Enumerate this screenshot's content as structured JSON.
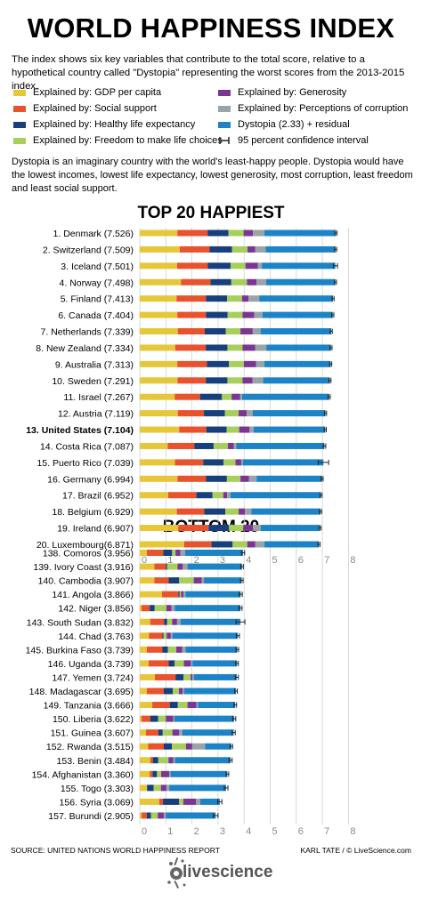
{
  "title": "WORLD HAPPINESS INDEX",
  "intro": "The index shows six key variables that contribute to the total score, relative to a hypothetical country called \"Dystopia\" representing the worst scores from the 2013-2015 index.",
  "legend": [
    {
      "label": "Explained by: GDP per capita",
      "color": "#e6c73a"
    },
    {
      "label": "Explained by: Social support",
      "color": "#e8522c"
    },
    {
      "label": "Explained by: Healthy life expectancy",
      "color": "#163f7c"
    },
    {
      "label": "Explained by: Freedom to make life choices",
      "color": "#a6cf5c"
    },
    {
      "label": "Explained by: Generosity",
      "color": "#7b3694"
    },
    {
      "label": "Explained by: Perceptions of corruption",
      "color": "#9aa3a8"
    },
    {
      "label": "Dystopia (2.33) + residual",
      "color": "#1c84c6"
    },
    {
      "label": "95 percent confidence interval",
      "color": "#222222"
    }
  ],
  "dystopia_description": "Dystopia is an imaginary country with the world's least-happy people. Dystopia would have the lowest incomes, lowest life expectancy, lowest generosity, most corruption, least freedom and least social support.",
  "source": "SOURCE: UNITED NATIONS WORLD HAPPINESS REPORT",
  "credit": "KARL TATE / © LiveScience.com",
  "logo_text": "livescience",
  "chart_data": [
    {
      "type": "bar",
      "stacked": true,
      "orientation": "horizontal",
      "title": "TOP 20 HAPPIEST",
      "xlim": [
        0,
        8
      ],
      "xticks": [
        "0",
        "1",
        "2",
        "3",
        "4",
        "5",
        "6",
        "7",
        "8"
      ],
      "grid": true,
      "bold_category": "13. United States (7.104)",
      "categories": [
        "1. Denmark (7.526)",
        "2. Switzerland (7.509)",
        "3. Iceland (7.501)",
        "4. Norway (7.498)",
        "5. Finland (7.413)",
        "6. Canada (7.404)",
        "7. Netherlands (7.339)",
        "8. New Zealand (7.334)",
        "9. Australia (7.313)",
        "10. Sweden (7.291)",
        "11. Israel (7.267)",
        "12. Austria (7.119)",
        "13. United States (7.104)",
        "14. Costa Rica (7.087)",
        "15. Puerto Rico (7.039)",
        "16. Germany (6.994)",
        "17. Brazil (6.952)",
        "18. Belgium (6.929)",
        "19. Ireland (6.907)",
        "20. Luxembourg(6.871)"
      ],
      "series": [
        {
          "name": "Explained by: GDP per capita",
          "color": "#e6c73a",
          "values": [
            1.44,
            1.53,
            1.43,
            1.58,
            1.41,
            1.44,
            1.46,
            1.36,
            1.44,
            1.45,
            1.34,
            1.46,
            1.51,
            1.07,
            1.35,
            1.45,
            1.09,
            1.42,
            1.48,
            1.7
          ]
        },
        {
          "name": "Explained by: Social support",
          "color": "#e8522c",
          "values": [
            1.16,
            1.15,
            1.18,
            1.13,
            1.13,
            1.1,
            1.03,
            1.17,
            1.13,
            1.08,
            0.97,
            1.0,
            1.04,
            1.02,
            1.08,
            1.09,
            1.08,
            1.05,
            1.16,
            1.05
          ]
        },
        {
          "name": "Explained by: Healthy life expectancy",
          "color": "#163f7c",
          "values": [
            0.8,
            0.86,
            0.87,
            0.8,
            0.81,
            0.83,
            0.81,
            0.83,
            0.85,
            0.83,
            0.84,
            0.8,
            0.78,
            0.74,
            0.78,
            0.8,
            0.62,
            0.81,
            0.78,
            0.81
          ]
        },
        {
          "name": "Explained by: Freedom to make life choices",
          "color": "#a6cf5c",
          "values": [
            0.58,
            0.59,
            0.57,
            0.6,
            0.57,
            0.57,
            0.56,
            0.58,
            0.57,
            0.58,
            0.37,
            0.53,
            0.48,
            0.55,
            0.46,
            0.52,
            0.41,
            0.51,
            0.55,
            0.56
          ]
        },
        {
          "name": "Explained by: Generosity",
          "color": "#7b3694",
          "values": [
            0.36,
            0.29,
            0.48,
            0.37,
            0.25,
            0.45,
            0.47,
            0.49,
            0.47,
            0.38,
            0.33,
            0.31,
            0.4,
            0.22,
            0.22,
            0.33,
            0.15,
            0.24,
            0.37,
            0.31
          ]
        },
        {
          "name": "Explained by: Perceptions of corruption",
          "color": "#9aa3a8",
          "values": [
            0.44,
            0.41,
            0.15,
            0.36,
            0.41,
            0.31,
            0.3,
            0.42,
            0.32,
            0.41,
            0.07,
            0.23,
            0.15,
            0.1,
            0.06,
            0.29,
            0.13,
            0.25,
            0.3,
            0.35
          ]
        },
        {
          "name": "Dystopia (2.33) + residual",
          "color": "#1c84c6",
          "values": [
            2.74,
            2.68,
            2.82,
            2.66,
            2.83,
            2.7,
            2.71,
            2.48,
            2.54,
            2.56,
            3.34,
            2.79,
            2.75,
            3.38,
            3.09,
            2.51,
            3.47,
            2.65,
            2.27,
            2.09
          ]
        }
      ],
      "ci_halfwidth": [
        0.04,
        0.04,
        0.08,
        0.04,
        0.04,
        0.04,
        0.04,
        0.04,
        0.04,
        0.04,
        0.04,
        0.04,
        0.04,
        0.05,
        0.2,
        0.04,
        0.04,
        0.04,
        0.04,
        0.04
      ]
    },
    {
      "type": "bar",
      "stacked": true,
      "orientation": "horizontal",
      "title": "BOTTOM 20",
      "xlim": [
        0,
        8
      ],
      "xticks": [
        "0",
        "1",
        "2",
        "3",
        "4",
        "5",
        "6",
        "7",
        "8"
      ],
      "grid": true,
      "categories": [
        "138. Comoros (3.956)",
        "139. Ivory Coast (3.916)",
        "140. Cambodia (3.907)",
        "141. Angola (3.866)",
        "142. Niger (3.856)",
        "143. South Sudan (3.832)",
        "144. Chad (3.763)",
        "145. Burkina Faso (3.739)",
        "146. Uganda (3.739)",
        "147. Yemen (3.724)",
        "148. Madagascar (3.695)",
        "149. Tanzania (3.666)",
        "150. Liberia (3.622)",
        "151. Guinea (3.607)",
        "152. Rwanda (3.515)",
        "153. Benin (3.484)",
        "154. Afghanistan (3.360)",
        "155. Togo (3.303)",
        "156. Syria (3.069)",
        "157. Burundi (2.905)"
      ],
      "series": [
        {
          "name": "Explained by: GDP per capita",
          "color": "#e6c73a",
          "values": [
            0.27,
            0.56,
            0.56,
            0.85,
            0.07,
            0.4,
            0.35,
            0.27,
            0.34,
            0.58,
            0.27,
            0.48,
            0.07,
            0.24,
            0.32,
            0.4,
            0.38,
            0.28,
            0.75,
            0.07
          ]
        },
        {
          "name": "Explained by: Social support",
          "color": "#e8522c",
          "values": [
            0.63,
            0.44,
            0.55,
            0.63,
            0.31,
            0.53,
            0.52,
            0.6,
            0.77,
            0.79,
            0.65,
            0.67,
            0.34,
            0.47,
            0.6,
            0.1,
            0.11,
            0.0,
            0.14,
            0.2
          ]
        },
        {
          "name": "Explained by: Healthy life expectancy",
          "color": "#163f7c",
          "values": [
            0.34,
            0.05,
            0.4,
            0.05,
            0.19,
            0.12,
            0.04,
            0.21,
            0.23,
            0.31,
            0.35,
            0.31,
            0.29,
            0.17,
            0.31,
            0.21,
            0.17,
            0.25,
            0.62,
            0.16
          ]
        },
        {
          "name": "Explained by: Freedom to make life choices",
          "color": "#a6cf5c",
          "values": [
            0.13,
            0.4,
            0.56,
            0.05,
            0.45,
            0.19,
            0.12,
            0.32,
            0.35,
            0.27,
            0.23,
            0.37,
            0.3,
            0.37,
            0.54,
            0.39,
            0.16,
            0.28,
            0.16,
            0.26
          ]
        },
        {
          "name": "Explained by: Generosity",
          "color": "#7b3694",
          "values": [
            0.19,
            0.2,
            0.31,
            0.1,
            0.19,
            0.19,
            0.16,
            0.23,
            0.27,
            0.07,
            0.15,
            0.34,
            0.29,
            0.26,
            0.24,
            0.18,
            0.31,
            0.21,
            0.48,
            0.23
          ]
        },
        {
          "name": "Explained by: Perceptions of corruption",
          "color": "#9aa3a8",
          "values": [
            0.18,
            0.18,
            0.08,
            0.07,
            0.13,
            0.13,
            0.06,
            0.13,
            0.06,
            0.06,
            0.05,
            0.06,
            0.04,
            0.12,
            0.5,
            0.07,
            0.05,
            0.11,
            0.17,
            0.08
          ]
        },
        {
          "name": "Dystopia (2.33) + residual",
          "color": "#1c84c6",
          "values": [
            2.22,
            2.09,
            1.45,
            2.12,
            2.52,
            2.3,
            2.51,
            1.98,
            1.71,
            1.64,
            1.99,
            1.43,
            2.29,
            1.97,
            1.0,
            2.13,
            2.18,
            2.18,
            0.75,
            1.91
          ]
        }
      ],
      "ci_halfwidth": [
        0.06,
        0.05,
        0.05,
        0.06,
        0.06,
        0.17,
        0.06,
        0.05,
        0.05,
        0.06,
        0.05,
        0.05,
        0.06,
        0.06,
        0.05,
        0.06,
        0.05,
        0.07,
        0.08,
        0.09
      ]
    }
  ]
}
